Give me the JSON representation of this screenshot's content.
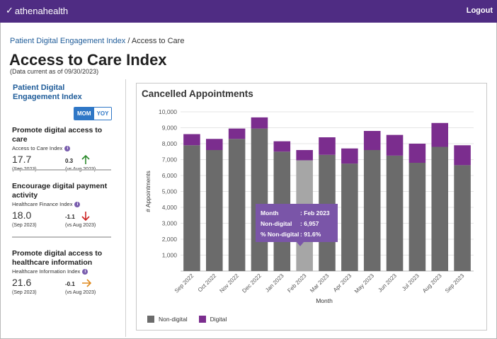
{
  "header": {
    "logo_text": "athenahealth",
    "logout_label": "Logout"
  },
  "breadcrumb": {
    "parent": "Patient Digital Engagement Index",
    "separator": "/",
    "current": "Access to Care"
  },
  "page": {
    "title": "Access to Care Index",
    "subtitle": "(Data current as of 09/30/2023)"
  },
  "sidebar": {
    "title": "Patient Digital Engagement Index",
    "toggle": {
      "mom": "MOM",
      "yoy": "YOY",
      "selected": "MOM"
    },
    "metrics": [
      {
        "title": "Promote digital access to care",
        "index_label": "Access to Care Index",
        "value": "17.7",
        "period": "(Sep 2023)",
        "delta": "0.3",
        "vs": "(vs Aug 2023)",
        "trend": "up",
        "trend_color": "#2e8b2e"
      },
      {
        "title": "Encourage digital payment activity",
        "index_label": "Healthcare Finance Index",
        "value": "18.0",
        "period": "(Sep 2023)",
        "delta": "-1.1",
        "vs": "(vs Aug 2023)",
        "trend": "down",
        "trend_color": "#cc2222"
      },
      {
        "title": "Promote digital access to healthcare information",
        "index_label": "Healthcare Information Index",
        "value": "21.6",
        "period": "(Sep 2023)",
        "delta": "-0.1",
        "vs": "(vs Aug 2023)",
        "trend": "right",
        "trend_color": "#e08a1e"
      }
    ]
  },
  "chart_data": {
    "type": "bar",
    "stacked": true,
    "title": "Cancelled Appointments",
    "xlabel": "Month",
    "ylabel": "# Appointments",
    "ylim": [
      0,
      10000
    ],
    "yticks": [
      "1,000",
      "2,000",
      "3,000",
      "4,000",
      "5,000",
      "6,000",
      "7,000",
      "8,000",
      "9,000",
      "10,000"
    ],
    "categories": [
      "Sep 2022",
      "Oct 2022",
      "Nov 2022",
      "Dec 2022",
      "Jan 2023",
      "Feb 2023",
      "Mar 2023",
      "Apr 2023",
      "May 2023",
      "Jun 2023",
      "Jul 2023",
      "Aug 2023",
      "Sep 2023"
    ],
    "series": [
      {
        "name": "Non-digital",
        "color": "#6b6b6b",
        "values": [
          7900,
          7600,
          8300,
          8950,
          7500,
          6957,
          7300,
          6750,
          7600,
          7250,
          6800,
          7800,
          6650
        ]
      },
      {
        "name": "Digital",
        "color": "#7b2d8e",
        "values": [
          700,
          700,
          650,
          700,
          650,
          643,
          1100,
          950,
          1200,
          1300,
          1200,
          1500,
          1250
        ]
      }
    ],
    "highlight_index": 5,
    "highlight_color": "#a6a6a6",
    "tooltip": {
      "month_label": "Month",
      "month_value": ": Feb 2023",
      "nondigital_label": "Non-digital",
      "nondigital_value": ": 6,957",
      "pct_label": "% Non-digital",
      "pct_value": ": 91.6%"
    },
    "legend_position": "bottom-left",
    "grid": true
  }
}
